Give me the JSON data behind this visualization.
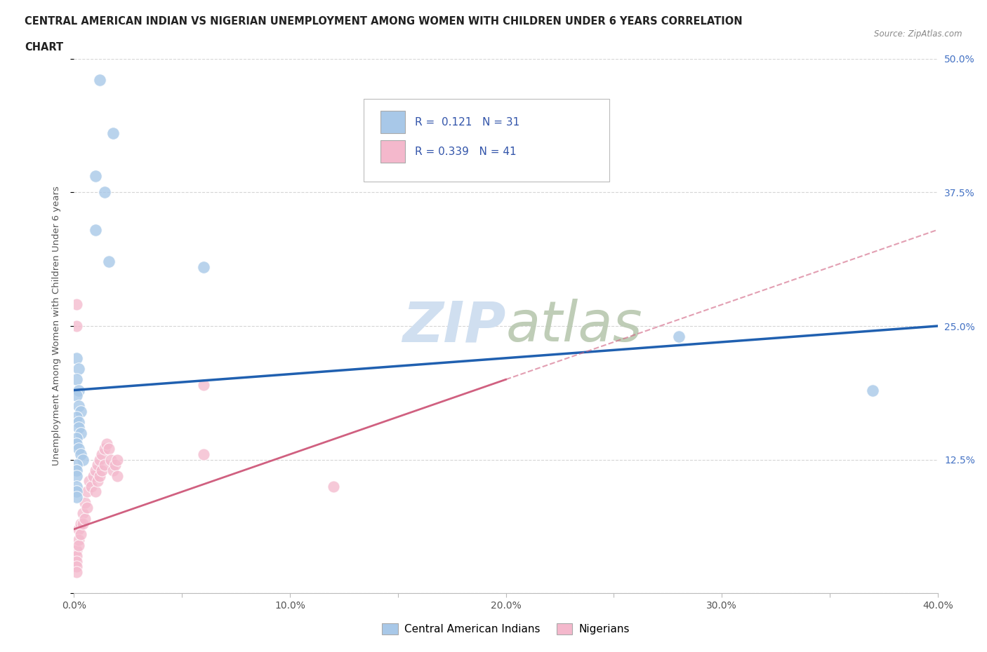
{
  "title_line1": "CENTRAL AMERICAN INDIAN VS NIGERIAN UNEMPLOYMENT AMONG WOMEN WITH CHILDREN UNDER 6 YEARS CORRELATION",
  "title_line2": "CHART",
  "source_text": "Source: ZipAtlas.com",
  "ylabel": "Unemployment Among Women with Children Under 6 years",
  "xlim": [
    0.0,
    0.4
  ],
  "ylim": [
    0.0,
    0.5
  ],
  "ytick_positions": [
    0.0,
    0.125,
    0.25,
    0.375,
    0.5
  ],
  "ytick_labels": [
    "",
    "12.5%",
    "25.0%",
    "37.5%",
    "50.0%"
  ],
  "r_blue": 0.121,
  "n_blue": 31,
  "r_pink": 0.339,
  "n_pink": 41,
  "legend_labels": [
    "Central American Indians",
    "Nigerians"
  ],
  "blue_color": "#a8c8e8",
  "pink_color": "#f4b8cc",
  "blue_line_color": "#2060b0",
  "pink_line_color": "#d06080",
  "watermark_color": "#d0dff0",
  "grid_color": "#cccccc",
  "background_color": "#ffffff",
  "blue_scatter_x": [
    0.012,
    0.018,
    0.01,
    0.014,
    0.01,
    0.016,
    0.001,
    0.002,
    0.001,
    0.002,
    0.001,
    0.002,
    0.003,
    0.001,
    0.002,
    0.002,
    0.003,
    0.001,
    0.001,
    0.002,
    0.003,
    0.004,
    0.001,
    0.001,
    0.001,
    0.06,
    0.001,
    0.001,
    0.28,
    0.37,
    0.001
  ],
  "blue_scatter_y": [
    0.48,
    0.43,
    0.39,
    0.375,
    0.34,
    0.31,
    0.22,
    0.21,
    0.2,
    0.19,
    0.185,
    0.175,
    0.17,
    0.165,
    0.16,
    0.155,
    0.15,
    0.145,
    0.14,
    0.135,
    0.13,
    0.125,
    0.12,
    0.115,
    0.11,
    0.305,
    0.1,
    0.095,
    0.24,
    0.19,
    0.09
  ],
  "pink_scatter_x": [
    0.001,
    0.001,
    0.001,
    0.001,
    0.001,
    0.002,
    0.002,
    0.002,
    0.003,
    0.003,
    0.004,
    0.004,
    0.005,
    0.005,
    0.006,
    0.006,
    0.007,
    0.008,
    0.009,
    0.01,
    0.01,
    0.011,
    0.011,
    0.012,
    0.012,
    0.013,
    0.013,
    0.014,
    0.014,
    0.015,
    0.016,
    0.017,
    0.018,
    0.019,
    0.02,
    0.02,
    0.06,
    0.06,
    0.12,
    0.001,
    0.001
  ],
  "pink_scatter_y": [
    0.04,
    0.035,
    0.03,
    0.025,
    0.02,
    0.06,
    0.05,
    0.045,
    0.065,
    0.055,
    0.075,
    0.065,
    0.085,
    0.07,
    0.095,
    0.08,
    0.105,
    0.1,
    0.11,
    0.115,
    0.095,
    0.12,
    0.105,
    0.125,
    0.11,
    0.13,
    0.115,
    0.135,
    0.12,
    0.14,
    0.135,
    0.125,
    0.115,
    0.12,
    0.125,
    0.11,
    0.195,
    0.13,
    0.1,
    0.27,
    0.25
  ]
}
